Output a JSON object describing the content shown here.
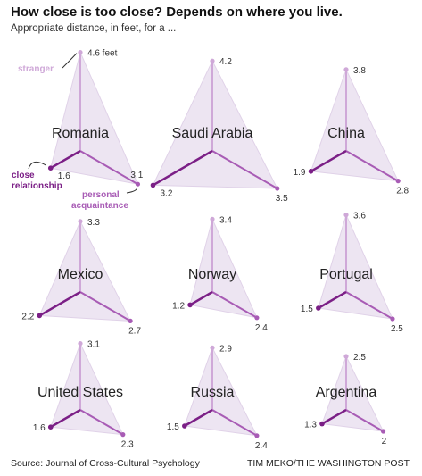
{
  "title": "How close is too close? Depends on where you live.",
  "subtitle": "Appropriate distance, in feet, for a ...",
  "source": "Source: Journal of Cross-Cultural Psychology",
  "credit": "TIM MEKO/THE WASHINGTON POST",
  "annotations": {
    "stranger": "stranger",
    "close_line1": "close",
    "close_line2": "relationship",
    "personal_line1": "personal",
    "personal_line2": "acquaintance",
    "feet_suffix": "feet"
  },
  "colors": {
    "fill": "#ede5f2",
    "stranger": "#cfa8d8",
    "personal": "#a85cb5",
    "close": "#7b1f86",
    "triangle_edge": "#e0d2e8"
  },
  "chart_data": {
    "type": "radar",
    "axes": [
      "stranger",
      "personal acquaintance",
      "close relationship"
    ],
    "units": "feet",
    "countries": [
      {
        "name": "Romania",
        "stranger": 4.6,
        "personal": 3.1,
        "close": 1.6
      },
      {
        "name": "Saudi Arabia",
        "stranger": 4.2,
        "personal": 3.5,
        "close": 3.2
      },
      {
        "name": "China",
        "stranger": 3.8,
        "personal": 2.8,
        "close": 1.9
      },
      {
        "name": "Mexico",
        "stranger": 3.3,
        "personal": 2.7,
        "close": 2.2
      },
      {
        "name": "Norway",
        "stranger": 3.4,
        "personal": 2.4,
        "close": 1.2
      },
      {
        "name": "Portugal",
        "stranger": 3.6,
        "personal": 2.5,
        "close": 1.5
      },
      {
        "name": "United States",
        "stranger": 3.1,
        "personal": 2.3,
        "close": 1.6
      },
      {
        "name": "Russia",
        "stranger": 2.9,
        "personal": 2.4,
        "close": 1.5
      },
      {
        "name": "Argentina",
        "stranger": 2.5,
        "personal": 2,
        "close": 1.3
      }
    ]
  }
}
